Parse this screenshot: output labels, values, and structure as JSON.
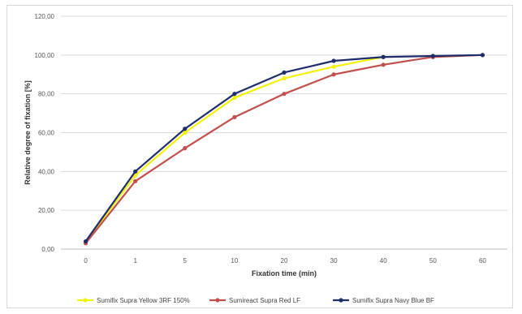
{
  "chart_data": {
    "type": "line",
    "categories": [
      "0",
      "1",
      "5",
      "10",
      "20",
      "30",
      "40",
      "50",
      "60"
    ],
    "xlabel": "Fixation time (min)",
    "ylabel": "Relative degree of fixation [%]",
    "ylim": [
      0,
      120
    ],
    "yticks": [
      "0,00",
      "20,00",
      "40,00",
      "60,00",
      "80,00",
      "100,00",
      "120,00"
    ],
    "grid": true,
    "legend_position": "bottom",
    "series": [
      {
        "name": "Sumifix Supra Yellow 3RF 150%",
        "color": "#f2f20a",
        "values": [
          3.5,
          38,
          60,
          78,
          88,
          94,
          99,
          null,
          null
        ]
      },
      {
        "name": "Sumireact Supra Red LF",
        "color": "#c0504d",
        "values": [
          3,
          35,
          52,
          68,
          80,
          90,
          95,
          99,
          100
        ]
      },
      {
        "name": "Sumifix Supra Navy Blue BF",
        "color": "#1f2d6b",
        "values": [
          4,
          40,
          62,
          80,
          91,
          97,
          99,
          99.5,
          100
        ]
      }
    ]
  }
}
